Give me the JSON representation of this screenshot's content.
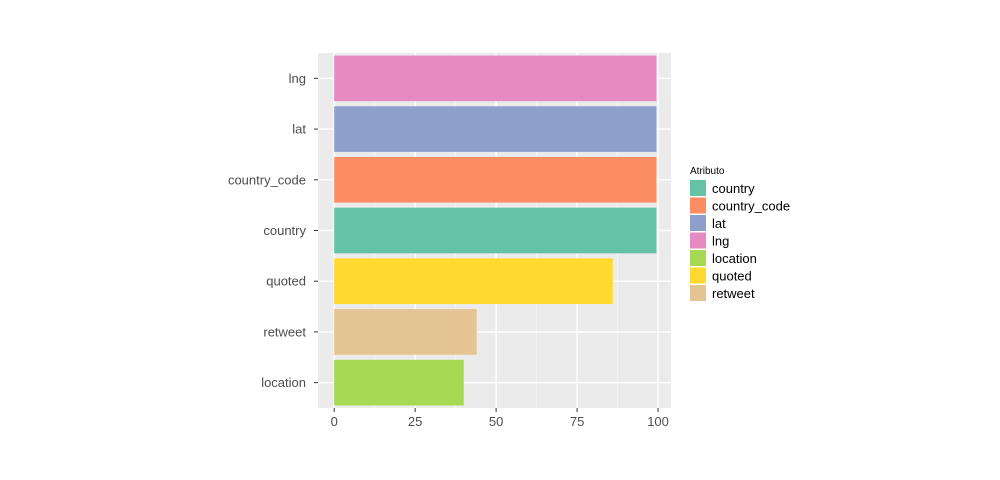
{
  "chart_data": {
    "type": "bar",
    "orientation": "horizontal",
    "categories": [
      "location",
      "retweet",
      "quoted",
      "country",
      "country_code",
      "lat",
      "lng"
    ],
    "values": [
      40,
      44,
      86,
      99.5,
      99.5,
      99.5,
      99.5
    ],
    "colors": [
      "#A6D854",
      "#E5C494",
      "#FFD92F",
      "#66C2A5",
      "#FC8D62",
      "#8DA0CB",
      "#E78AC3"
    ],
    "xlim": [
      -5,
      104
    ],
    "xticks": [
      0,
      25,
      50,
      75,
      100
    ],
    "grid": true,
    "legend": {
      "title": "Atributo",
      "position": "right",
      "items": [
        {
          "label": "country",
          "color": "#66C2A5"
        },
        {
          "label": "country_code",
          "color": "#FC8D62"
        },
        {
          "label": "lat",
          "color": "#8DA0CB"
        },
        {
          "label": "lng",
          "color": "#E78AC3"
        },
        {
          "label": "location",
          "color": "#A6D854"
        },
        {
          "label": "quoted",
          "color": "#FFD92F"
        },
        {
          "label": "retweet",
          "color": "#E5C494"
        }
      ]
    }
  }
}
